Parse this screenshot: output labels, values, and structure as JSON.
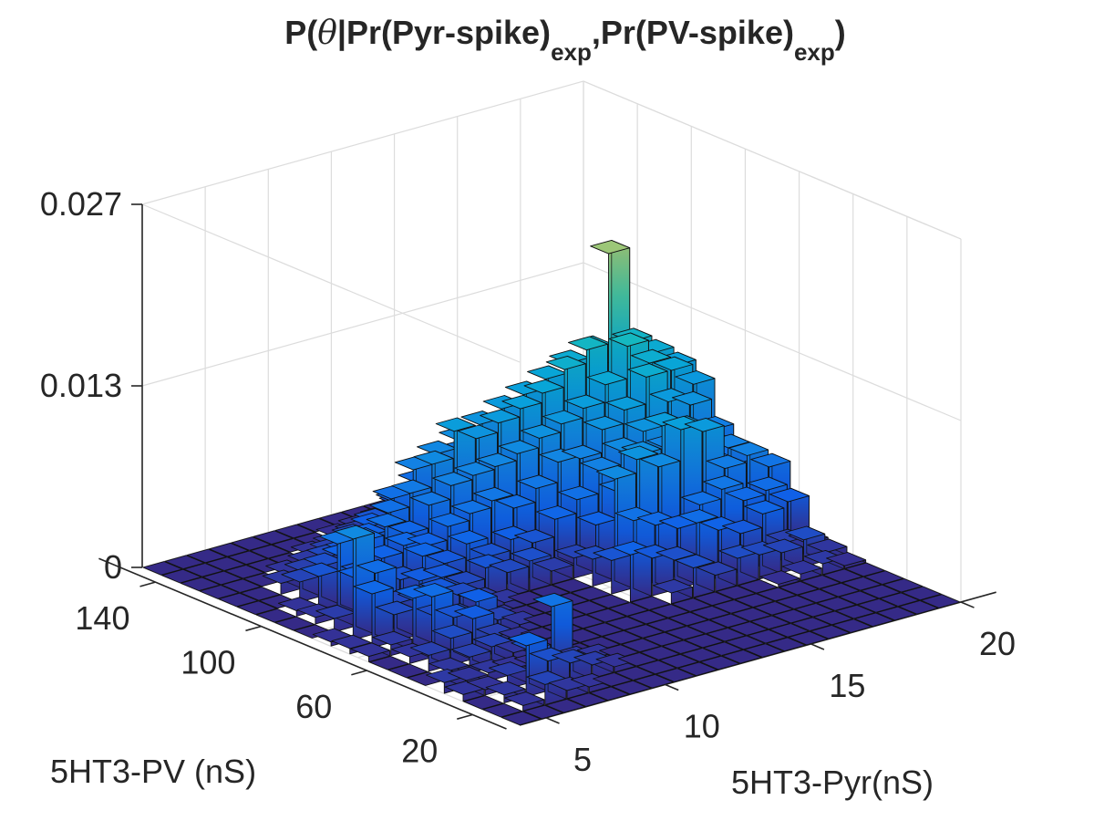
{
  "chart_data": {
    "type": "bar3",
    "title": {
      "prefix": "P(",
      "theta": "θ",
      "mid1": "|Pr(Pyr-spike)",
      "sub1": "exp",
      "mid2": ",Pr(PV-spike)",
      "sub2": "exp",
      "suffix": ")"
    },
    "xlabel": "5HT3-Pyr(nS)",
    "ylabel": "5HT3-PV (nS)",
    "x_ticks": [
      "5",
      "10",
      "15",
      "20"
    ],
    "y_ticks": [
      "140",
      "100",
      "60",
      "20"
    ],
    "z_ticks": [
      "0",
      "0.013",
      "0.027"
    ],
    "z_range": [
      0,
      0.027
    ],
    "grid": true,
    "colormap": "parula",
    "x_range": [
      1,
      20
    ],
    "y_range": [
      1,
      20
    ],
    "note": "values: rows = PV bin index (1 = 20 nS side, 20 = 140 nS side), columns = Pyr bin index (1 = 5 nS side, 20 = 20 nS side); values are approximate estimates",
    "values": [
      [
        0,
        0,
        0,
        0,
        0,
        0,
        0,
        0,
        0,
        0,
        0,
        0,
        0,
        0,
        0,
        0,
        0,
        0,
        0,
        0
      ],
      [
        0,
        0.0004,
        0.0015,
        0.0006,
        0.0004,
        0,
        0,
        0,
        0,
        0,
        0,
        0,
        0,
        0,
        0,
        0,
        0,
        0,
        0,
        0
      ],
      [
        0,
        0.0006,
        0.0038,
        0.0022,
        0.0016,
        0.001,
        0.0004,
        0,
        0,
        0,
        0,
        0,
        0,
        0,
        0,
        0,
        0,
        0,
        0,
        0
      ],
      [
        0.0005,
        0.0004,
        0.001,
        0.0024,
        0.0052,
        0.0008,
        0.0005,
        0,
        0,
        0,
        0,
        0,
        0,
        0,
        0,
        0,
        0,
        0,
        0,
        0
      ],
      [
        0.0008,
        0.0005,
        0.0006,
        0.0004,
        0.0002,
        0.0002,
        0,
        0,
        0,
        0,
        0,
        0,
        0,
        0,
        0,
        0,
        0,
        0,
        0,
        0
      ],
      [
        0,
        0.0006,
        0.0012,
        0.0015,
        0.0006,
        0.0004,
        0,
        0,
        0,
        0,
        0,
        0,
        0,
        0,
        0,
        0,
        0.0002,
        0.0005,
        0.0008,
        0.0002
      ],
      [
        0,
        0.0012,
        0.002,
        0.003,
        0.0012,
        0.0005,
        0,
        0,
        0,
        0,
        0,
        0,
        0.0008,
        0.0022,
        0.0012,
        0.002,
        0.0018,
        0.0015,
        0.002,
        0.0006
      ],
      [
        0,
        0.0005,
        0.0045,
        0.0025,
        0.0032,
        0.0014,
        0.0006,
        0,
        0,
        0,
        0,
        0.0035,
        0.0028,
        0.0022,
        0.0045,
        0.0035,
        0.0028,
        0.0038,
        0.0012,
        0.0007
      ],
      [
        0.0004,
        0.0008,
        0.0038,
        0.002,
        0.0015,
        0.001,
        0.0005,
        0,
        0,
        0,
        0,
        0.0025,
        0.005,
        0.0042,
        0.0035,
        0.0048,
        0.0055,
        0.0042,
        0.0045,
        0.0032
      ],
      [
        0.0004,
        0.004,
        0.002,
        0.0025,
        0.0028,
        0.002,
        0.0012,
        0.0006,
        0,
        0,
        0,
        0.002,
        0.0075,
        0.0085,
        0.0075,
        0.0098,
        0.0092,
        0.006,
        0.0065,
        0.0052
      ],
      [
        0.0003,
        0.0075,
        0.0045,
        0.0018,
        0.003,
        0.0028,
        0.0018,
        0.0026,
        0.0018,
        0.0022,
        0.001,
        0.0015,
        0.0035,
        0.0055,
        0.0078,
        0.0095,
        0.0088,
        0.0058,
        0.0065,
        0.0042
      ],
      [
        0,
        0.001,
        0.0035,
        0.003,
        0.0025,
        0.0038,
        0.0028,
        0.0038,
        0.0024,
        0.0032,
        0.0025,
        0.0038,
        0.0048,
        0.0065,
        0.0075,
        0.0085,
        0.0068,
        0.0072,
        0.0062,
        0.0048
      ],
      [
        0,
        0.0005,
        0.0055,
        0.0028,
        0.0035,
        0.004,
        0.0035,
        0.0045,
        0.005,
        0.0055,
        0.0045,
        0.0055,
        0.007,
        0.0068,
        0.0085,
        0.0095,
        0.0115,
        0.0092,
        0.0085,
        0.0062
      ],
      [
        0,
        0.0004,
        0.0025,
        0.0035,
        0.0042,
        0.0048,
        0.0038,
        0.0055,
        0.0065,
        0.0068,
        0.007,
        0.0075,
        0.0082,
        0.0088,
        0.0095,
        0.0108,
        0.0132,
        0.0115,
        0.0105,
        0.009
      ],
      [
        0,
        0,
        0.0015,
        0.0022,
        0.0028,
        0.0035,
        0.0048,
        0.0058,
        0.0075,
        0.0095,
        0.0085,
        0.0092,
        0.0098,
        0.0105,
        0.0118,
        0.0128,
        0.0195,
        0.0125,
        0.0112,
        0.0098
      ],
      [
        0,
        0,
        0.0008,
        0.0012,
        0.0018,
        0.0025,
        0.0032,
        0.0048,
        0.0065,
        0.0072,
        0.0078,
        0.0085,
        0.0092,
        0.0098,
        0.0105,
        0.0112,
        0.0118,
        0.0095,
        0.0088,
        0.0072
      ],
      [
        0,
        0,
        0,
        0.0005,
        0.0008,
        0.0012,
        0.0018,
        0.0025,
        0.0035,
        0.0045,
        0.0052,
        0.0058,
        0.0065,
        0.007,
        0.0075,
        0.008,
        0.0085,
        0.0068,
        0.0058,
        0.0045
      ],
      [
        0,
        0,
        0,
        0,
        0,
        0.0004,
        0.0006,
        0.001,
        0.0015,
        0.0022,
        0.0028,
        0.0032,
        0.0038,
        0.0042,
        0.0048,
        0.0052,
        0.0055,
        0.0045,
        0.0038,
        0.003
      ],
      [
        0,
        0,
        0,
        0,
        0,
        0,
        0,
        0.0002,
        0.0004,
        0.0006,
        0.0008,
        0.001,
        0.0012,
        0.0015,
        0.0018,
        0.002,
        0.0022,
        0.0018,
        0.0015,
        0.001
      ],
      [
        0,
        0,
        0,
        0,
        0,
        0,
        0,
        0,
        0,
        0,
        0,
        0,
        0,
        0,
        0,
        0,
        0,
        0,
        0,
        0
      ]
    ]
  }
}
